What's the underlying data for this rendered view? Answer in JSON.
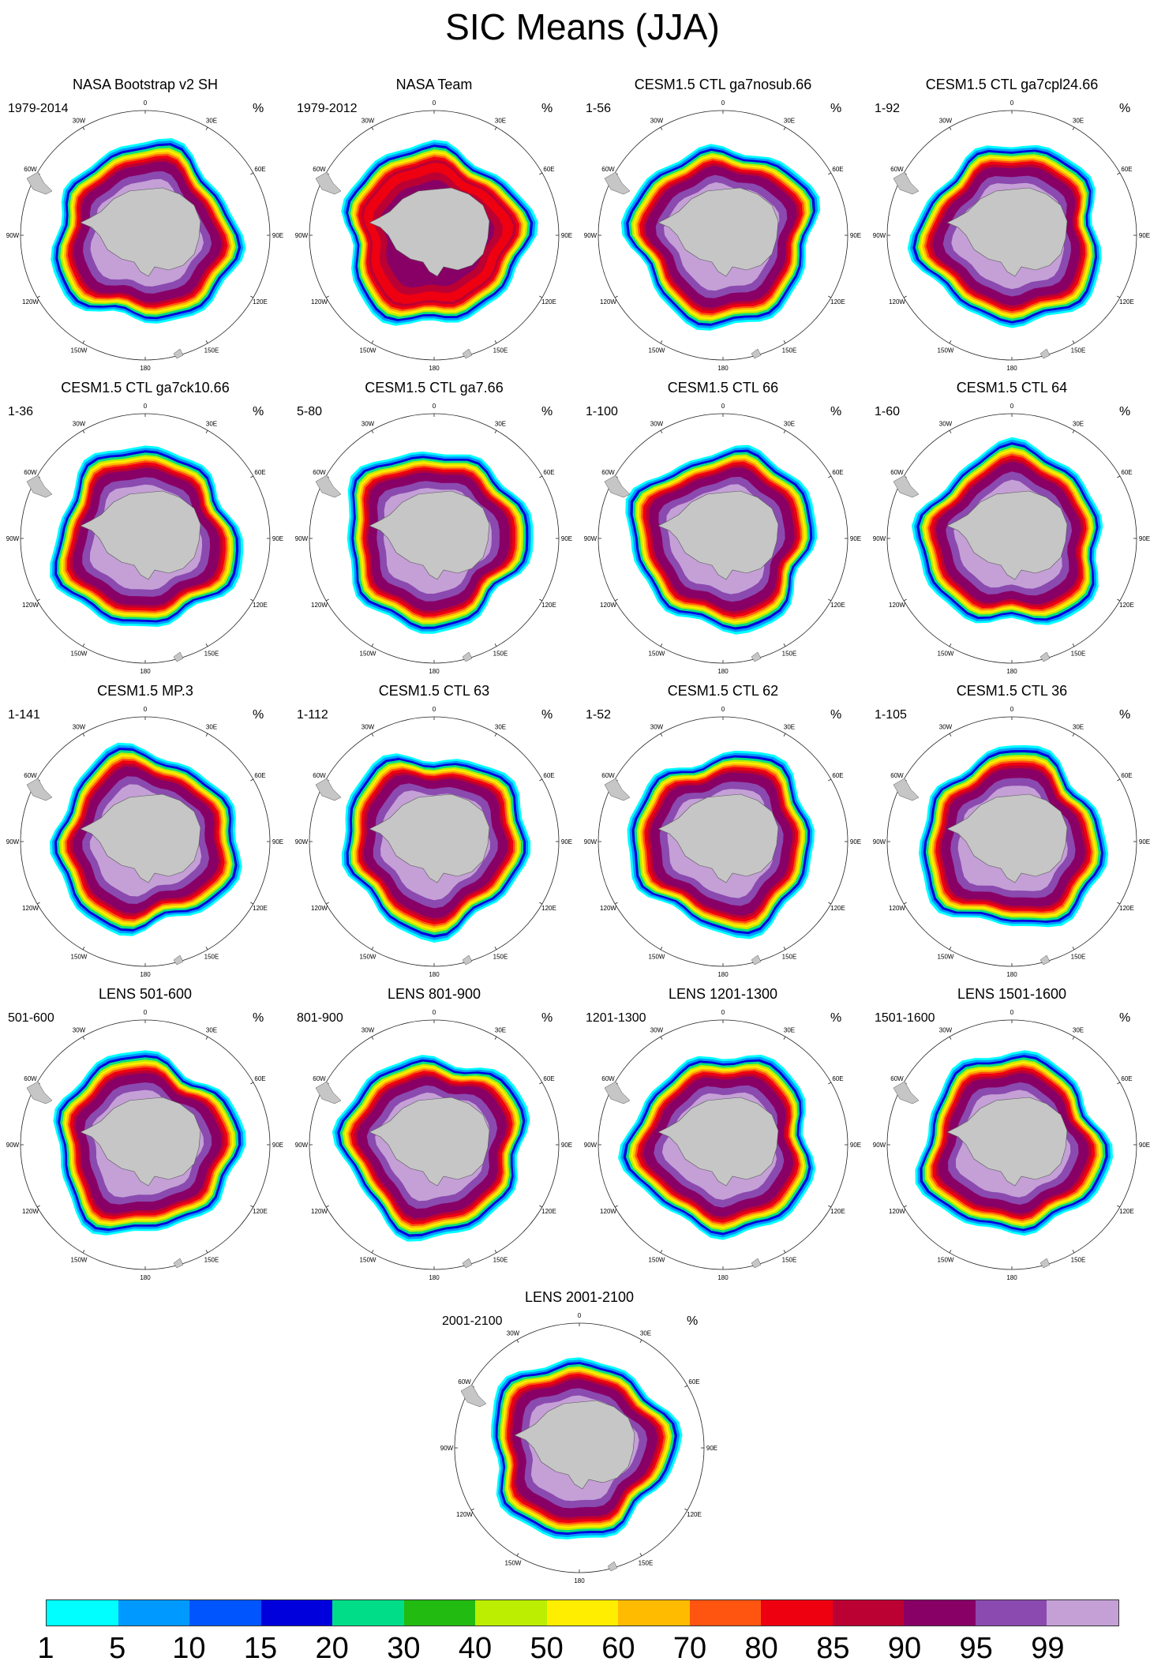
{
  "figure_title": "SIC Means (JJA)",
  "lon_labels": [
    "0",
    "30E",
    "60E",
    "90E",
    "120E",
    "150E",
    "180",
    "150W",
    "120W",
    "90W",
    "60W",
    "30W"
  ],
  "colorbar": {
    "labels": [
      "1",
      "5",
      "10",
      "15",
      "20",
      "30",
      "40",
      "50",
      "60",
      "70",
      "80",
      "85",
      "90",
      "95",
      "99"
    ],
    "colors": [
      "#00ffff",
      "#0099ff",
      "#0055ff",
      "#0000dd",
      "#00dd88",
      "#22bb11",
      "#bbee00",
      "#ffee00",
      "#ffbb00",
      "#ff5511",
      "#ee0011",
      "#bb0033",
      "#880066",
      "#8b4aaf",
      "#c4a0d6"
    ]
  },
  "colors": {
    "land": "#c6c6c6",
    "ocean": "#ffffff"
  },
  "chart_data": [
    {
      "type": "map",
      "title": "NASA Bootstrap v2 SH",
      "range": "1979-2014",
      "units": "%"
    },
    {
      "type": "map",
      "title": "NASA Team",
      "range": "1979-2012",
      "units": "%"
    },
    {
      "type": "map",
      "title": "CESM1.5 CTL ga7nosub.66",
      "range": "1-56",
      "units": "%"
    },
    {
      "type": "map",
      "title": "CESM1.5 CTL ga7cpl24.66",
      "range": "1-92",
      "units": "%"
    },
    {
      "type": "map",
      "title": "CESM1.5 CTL ga7ck10.66",
      "range": "1-36",
      "units": "%"
    },
    {
      "type": "map",
      "title": "CESM1.5 CTL ga7.66",
      "range": "5-80",
      "units": "%"
    },
    {
      "type": "map",
      "title": "CESM1.5 CTL 66",
      "range": "1-100",
      "units": "%"
    },
    {
      "type": "map",
      "title": "CESM1.5 CTL 64",
      "range": "1-60",
      "units": "%"
    },
    {
      "type": "map",
      "title": "CESM1.5 MP.3",
      "range": "1-141",
      "units": "%"
    },
    {
      "type": "map",
      "title": "CESM1.5 CTL 63",
      "range": "1-112",
      "units": "%"
    },
    {
      "type": "map",
      "title": "CESM1.5 CTL 62",
      "range": "1-52",
      "units": "%"
    },
    {
      "type": "map",
      "title": "CESM1.5 CTL 36",
      "range": "1-105",
      "units": "%"
    },
    {
      "type": "map",
      "title": "LENS 501-600",
      "range": "501-600",
      "units": "%"
    },
    {
      "type": "map",
      "title": "LENS 801-900",
      "range": "801-900",
      "units": "%"
    },
    {
      "type": "map",
      "title": "LENS 1201-1300",
      "range": "1201-1300",
      "units": "%"
    },
    {
      "type": "map",
      "title": "LENS 1501-1600",
      "range": "1501-1600",
      "units": "%"
    },
    {
      "type": "map",
      "title": "LENS 2001-2100",
      "range": "2001-2100",
      "units": "%"
    }
  ]
}
